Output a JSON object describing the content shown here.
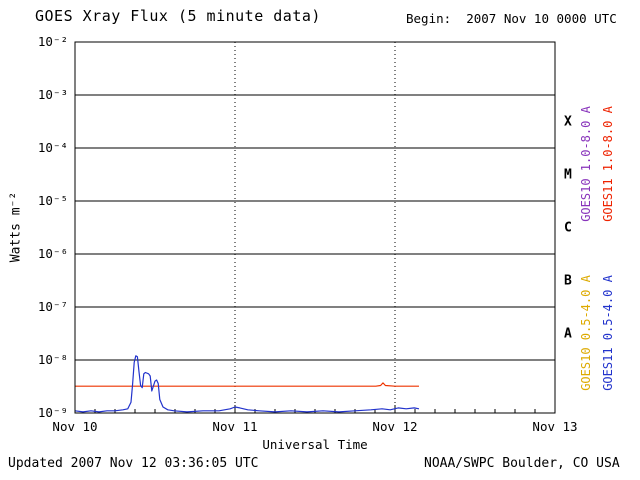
{
  "header": {
    "title": "GOES Xray Flux (5 minute data)",
    "begin": "Begin:  2007 Nov 10 0000 UTC"
  },
  "footer": {
    "updated": "Updated 2007 Nov 12 03:36:05 UTC",
    "source": "NOAA/SWPC Boulder, CO USA"
  },
  "axes": {
    "y_title": "Watts m⁻²",
    "x_title": "Universal Time",
    "y_tick_labels": [
      "10⁻²",
      "10⁻³",
      "10⁻⁴",
      "10⁻⁵",
      "10⁻⁶",
      "10⁻⁷",
      "10⁻⁸",
      "10⁻⁹"
    ],
    "x_tick_labels": [
      "Nov 10",
      "Nov 11",
      "Nov 12",
      "Nov 13"
    ],
    "flare_classes": [
      "X",
      "M",
      "C",
      "B",
      "A"
    ],
    "flare_class_positions": [
      -3.5,
      -4.5,
      -5.5,
      -6.5,
      -7.5
    ]
  },
  "legend": [
    {
      "name": "goes10-long",
      "label": "GOES10 1.0-8.0 A",
      "color": "#8833bb"
    },
    {
      "name": "goes11-long",
      "label": "GOES11 1.0-8.0 A",
      "color": "#ee2200"
    },
    {
      "name": "goes10-short",
      "label": "GOES10 0.5-4.0 A",
      "color": "#ddaa00"
    },
    {
      "name": "goes11-short",
      "label": "GOES11 0.5-4.0 A",
      "color": "#2233cc"
    }
  ],
  "chart_data": {
    "type": "line",
    "title": "GOES Xray Flux (5 minute data)",
    "xlabel": "Universal Time",
    "ylabel": "Watts m⁻²",
    "x_unit": "days since 2007 Nov 10 0000 UTC",
    "x_range": [
      0,
      3
    ],
    "y_log_range": [
      -9,
      -2
    ],
    "y_scale": "log",
    "x_day_ticks": [
      0,
      1,
      2,
      3
    ],
    "y_tick_exponents": [
      -2,
      -3,
      -4,
      -5,
      -6,
      -7,
      -8,
      -9
    ],
    "grid": {
      "vertical_dotted_days": [
        1,
        2
      ],
      "horizontal_decades": [
        -3,
        -4,
        -5,
        -6,
        -7,
        -8
      ]
    },
    "series": [
      {
        "name": "GOES11 1.0-8.0 A",
        "color": "#ee3300",
        "points": [
          [
            0.0,
            3.2e-09
          ],
          [
            0.5,
            3.2e-09
          ],
          [
            1.0,
            3.2e-09
          ],
          [
            1.5,
            3.2e-09
          ],
          [
            1.88,
            3.2e-09
          ],
          [
            1.91,
            3.3e-09
          ],
          [
            1.925,
            3.7e-09
          ],
          [
            1.94,
            3.3e-09
          ],
          [
            2.0,
            3.2e-09
          ],
          [
            2.15,
            3.2e-09
          ]
        ]
      },
      {
        "name": "GOES11 0.5-4.0 A",
        "color": "#2233cc",
        "points": [
          [
            0.0,
            1.1e-09
          ],
          [
            0.05,
            1.05e-09
          ],
          [
            0.1,
            1.1e-09
          ],
          [
            0.15,
            1.05e-09
          ],
          [
            0.2,
            1.1e-09
          ],
          [
            0.25,
            1.1e-09
          ],
          [
            0.3,
            1.15e-09
          ],
          [
            0.33,
            1.2e-09
          ],
          [
            0.35,
            1.6e-09
          ],
          [
            0.36,
            3.5e-09
          ],
          [
            0.37,
            9e-09
          ],
          [
            0.38,
            1.2e-08
          ],
          [
            0.39,
            1.15e-08
          ],
          [
            0.4,
            6e-09
          ],
          [
            0.41,
            3.3e-09
          ],
          [
            0.42,
            3e-09
          ],
          [
            0.43,
            5.5e-09
          ],
          [
            0.44,
            5.8e-09
          ],
          [
            0.46,
            5.5e-09
          ],
          [
            0.47,
            5e-09
          ],
          [
            0.48,
            2.6e-09
          ],
          [
            0.5,
            4e-09
          ],
          [
            0.51,
            4.2e-09
          ],
          [
            0.52,
            3.6e-09
          ],
          [
            0.53,
            1.8e-09
          ],
          [
            0.55,
            1.3e-09
          ],
          [
            0.58,
            1.15e-09
          ],
          [
            0.62,
            1.1e-09
          ],
          [
            0.7,
            1.05e-09
          ],
          [
            0.8,
            1.1e-09
          ],
          [
            0.9,
            1.1e-09
          ],
          [
            0.97,
            1.2e-09
          ],
          [
            1.0,
            1.3e-09
          ],
          [
            1.03,
            1.25e-09
          ],
          [
            1.08,
            1.15e-09
          ],
          [
            1.15,
            1.1e-09
          ],
          [
            1.25,
            1.05e-09
          ],
          [
            1.35,
            1.1e-09
          ],
          [
            1.45,
            1.05e-09
          ],
          [
            1.55,
            1.1e-09
          ],
          [
            1.65,
            1.05e-09
          ],
          [
            1.75,
            1.1e-09
          ],
          [
            1.85,
            1.15e-09
          ],
          [
            1.92,
            1.2e-09
          ],
          [
            1.97,
            1.15e-09
          ],
          [
            2.02,
            1.25e-09
          ],
          [
            2.07,
            1.2e-09
          ],
          [
            2.12,
            1.25e-09
          ],
          [
            2.15,
            1.2e-09
          ]
        ]
      }
    ]
  }
}
